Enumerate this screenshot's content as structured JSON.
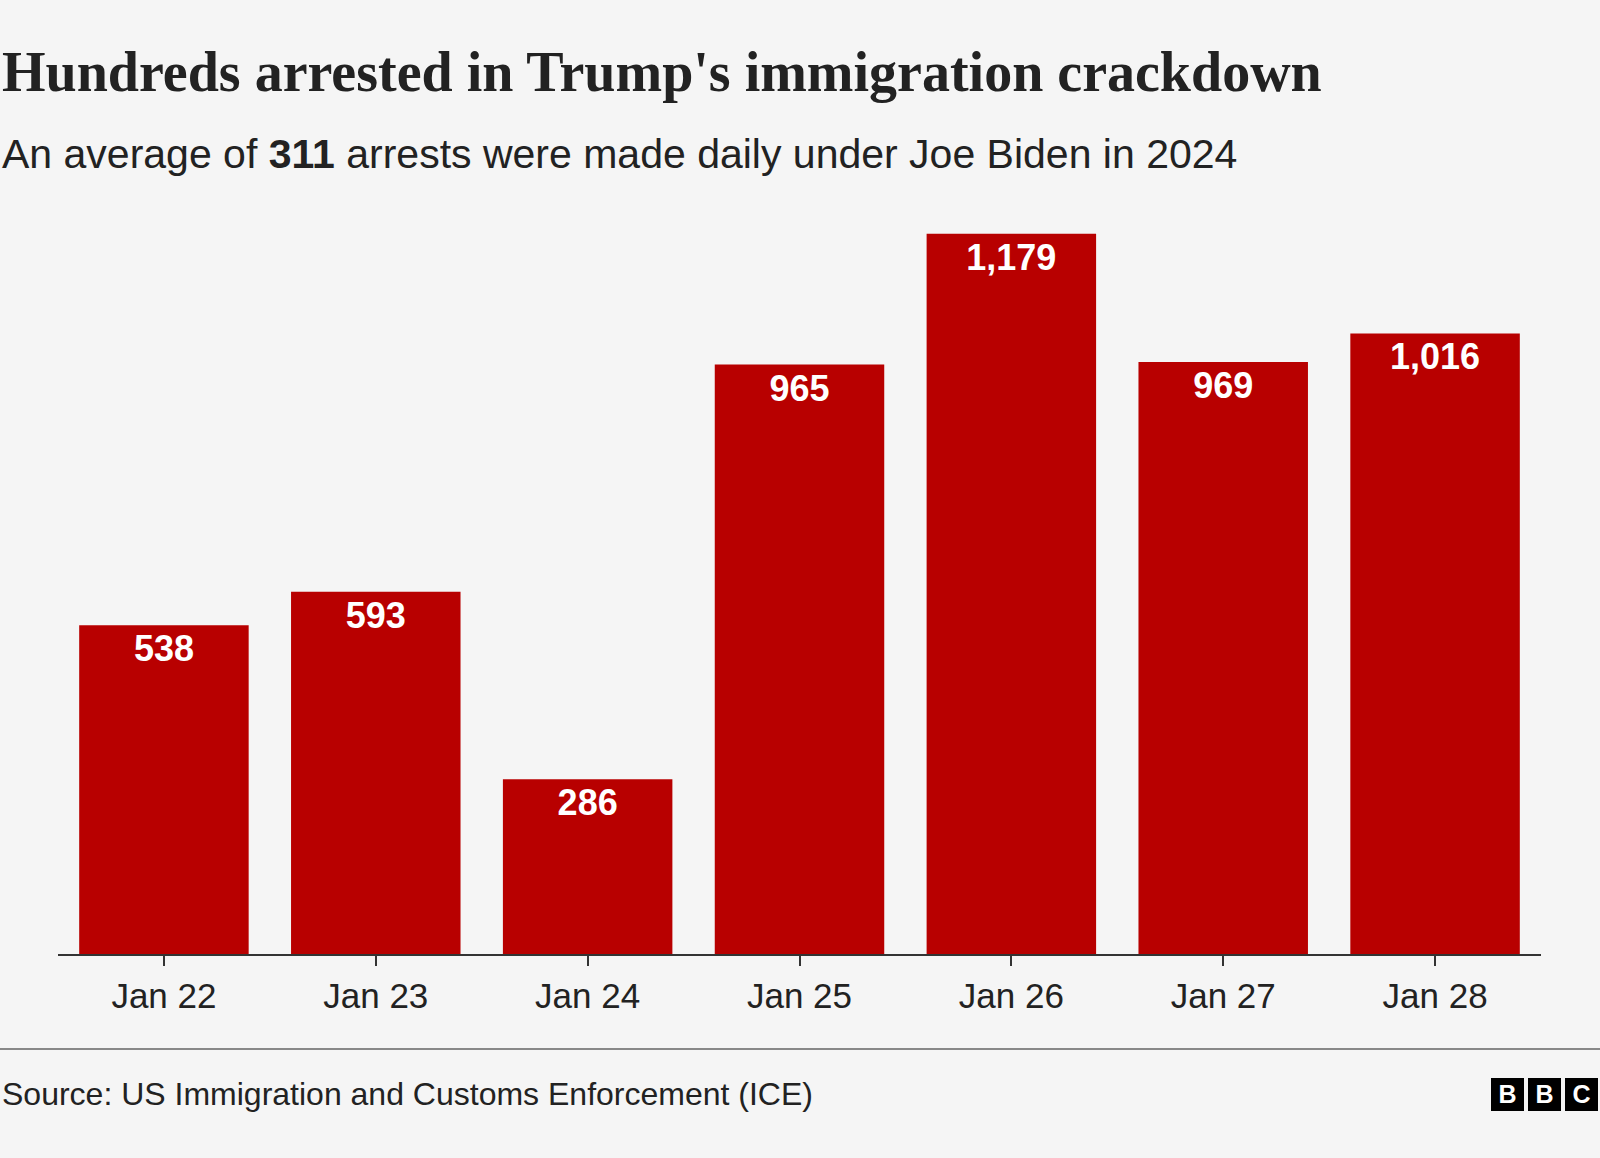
{
  "chart_data": {
    "type": "bar",
    "title": "Hundreds arrested in Trump's immigration crackdown",
    "subtitle": "An average of 311 arrests were made daily under Joe Biden in 2024",
    "categories": [
      "Jan 22",
      "Jan 23",
      "Jan 24",
      "Jan 25",
      "Jan 26",
      "Jan 27",
      "Jan 28"
    ],
    "values": [
      538,
      593,
      286,
      965,
      1179,
      969,
      1016
    ],
    "value_labels": [
      "538",
      "593",
      "286",
      "965",
      "1,179",
      "969",
      "1,016"
    ],
    "color": "#b80000",
    "ylim": [
      0,
      1200
    ],
    "grid": false,
    "data_labels": true,
    "tick_labels": "x",
    "source": "Source: US Immigration and Customs Enforcement (ICE)",
    "logo": "BBC"
  }
}
